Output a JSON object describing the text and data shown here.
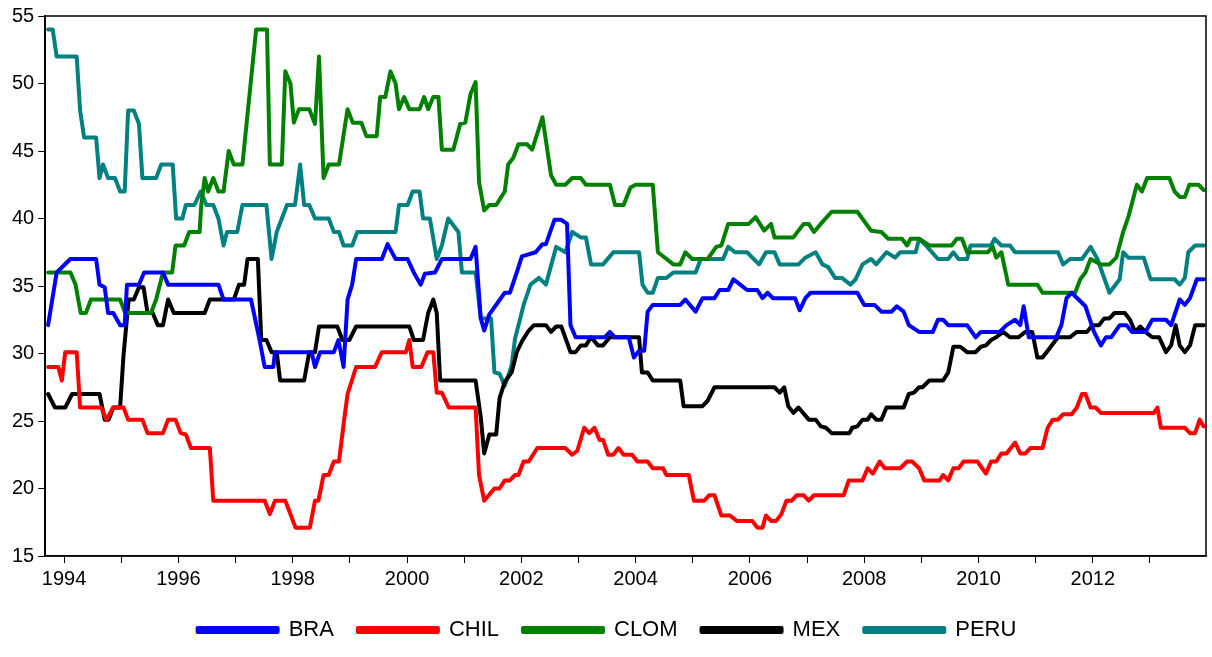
{
  "chart_data": {
    "type": "line",
    "marker": "none",
    "line_style": "solid",
    "legend": "bottom",
    "xlim": [
      1993.67,
      2013.98
    ],
    "ylim": [
      15,
      55
    ],
    "yticks": [
      15,
      20,
      25,
      30,
      35,
      40,
      45,
      50,
      55
    ],
    "xticks": [
      {
        "value": 1994,
        "label": "1994"
      },
      {
        "value": 1995,
        "label": null
      },
      {
        "value": 1996,
        "label": "1996"
      },
      {
        "value": 1997,
        "label": null
      },
      {
        "value": 1998,
        "label": "1998"
      },
      {
        "value": 1999,
        "label": null
      },
      {
        "value": 2000,
        "label": "2000"
      },
      {
        "value": 2001,
        "label": null
      },
      {
        "value": 2002,
        "label": "2002"
      },
      {
        "value": 2003,
        "label": null
      },
      {
        "value": 2004,
        "label": "2004"
      },
      {
        "value": 2005,
        "label": null
      },
      {
        "value": 2006,
        "label": "2006"
      },
      {
        "value": 2007,
        "label": null
      },
      {
        "value": 2008,
        "label": "2008"
      },
      {
        "value": 2009,
        "label": null
      },
      {
        "value": 2010,
        "label": "2010"
      },
      {
        "value": 2011,
        "label": null
      },
      {
        "value": 2012,
        "label": "2012"
      },
      {
        "value": 2013,
        "label": null
      }
    ],
    "series": [
      {
        "name": "BRA",
        "color": "#0000ff",
        "x": [
          1993.72,
          1993.87,
          1994.11,
          1994.56,
          1994.62,
          1994.71,
          1994.77,
          1994.86,
          1994.98,
          1995.06,
          1995.1,
          1995.31,
          1995.4,
          1995.73,
          1995.82,
          1996.7,
          1996.79,
          1997.27,
          1997.42,
          1997.51,
          1997.66,
          1997.69,
          1998.33,
          1998.39,
          1998.48,
          1998.72,
          1998.8,
          1998.89,
          1998.96,
          1999.04,
          1999.11,
          1999.56,
          1999.66,
          1999.8,
          2000.01,
          2000.13,
          2000.24,
          2000.31,
          2000.49,
          2000.61,
          2000.81,
          2001.11,
          2001.2,
          2001.29,
          2001.35,
          2001.44,
          2001.71,
          2001.8,
          2001.92,
          2002.01,
          2002.25,
          2002.37,
          2002.43,
          2002.58,
          2002.7,
          2002.8,
          2002.86,
          2002.95,
          2003.46,
          2003.55,
          2003.64,
          2003.88,
          2003.97,
          2004.06,
          2004.15,
          2004.21,
          2004.3,
          2004.78,
          2004.87,
          2005.05,
          2005.17,
          2005.38,
          2005.47,
          2005.62,
          2005.71,
          2005.83,
          2005.95,
          2006.13,
          2006.22,
          2006.31,
          2006.4,
          2006.79,
          2006.87,
          2006.97,
          2007.06,
          2007.74,
          2007.88,
          2008,
          2008.18,
          2008.3,
          2008.48,
          2008.57,
          2008.69,
          2008.78,
          2008.96,
          2009.2,
          2009.29,
          2009.38,
          2009.47,
          2009.8,
          2009.95,
          2010.04,
          2010.37,
          2010.49,
          2010.64,
          2010.73,
          2010.79,
          2010.88,
          2011.36,
          2011.45,
          2011.54,
          2011.63,
          2011.87,
          2012.02,
          2012.14,
          2012.23,
          2012.32,
          2012.47,
          2012.59,
          2012.68,
          2012.92,
          2013.04,
          2013.28,
          2013.37,
          2013.52,
          2013.61,
          2013.7,
          2013.82,
          2013.94
        ],
        "values": [
          32.1,
          36,
          37,
          37,
          35.1,
          34.9,
          33,
          33,
          32.1,
          32.1,
          35.1,
          35.1,
          36,
          36,
          35.1,
          35.1,
          34,
          34,
          31,
          29,
          29,
          30.1,
          30.1,
          29,
          30.1,
          30.1,
          31,
          29,
          34,
          35.1,
          37,
          37,
          38.1,
          37,
          37,
          35.9,
          35.1,
          35.9,
          36,
          37,
          37,
          37,
          37.9,
          32.6,
          31.7,
          32.9,
          34.5,
          34.5,
          36,
          37.2,
          37.5,
          38.1,
          38.1,
          39.9,
          39.9,
          39.6,
          32.1,
          31.2,
          31.2,
          31.6,
          31.2,
          31.2,
          29.7,
          30.2,
          30.2,
          33.1,
          33.6,
          33.6,
          34,
          33.1,
          34.1,
          34.1,
          34.7,
          34.7,
          35.5,
          35.1,
          34.7,
          34.7,
          34.1,
          34.5,
          34.1,
          34.1,
          33.2,
          34.1,
          34.5,
          34.5,
          34.5,
          33.6,
          33.6,
          33.1,
          33.1,
          33.5,
          33.1,
          32.1,
          31.6,
          31.6,
          32.5,
          32.5,
          32.1,
          32.1,
          31.2,
          31.6,
          31.6,
          32.1,
          32.5,
          32.1,
          33.5,
          31.2,
          31.2,
          32.1,
          34.1,
          34.5,
          33.5,
          31.6,
          30.6,
          31.2,
          31.2,
          32.1,
          32.1,
          31.6,
          31.6,
          32.5,
          32.5,
          32.1,
          34,
          33.6,
          34.1,
          35.5,
          35.5
        ]
      },
      {
        "name": "CHIL",
        "color": "#ff0000",
        "x": [
          1993.72,
          1993.9,
          1993.96,
          1994.02,
          1994.22,
          1994.28,
          1994.65,
          1994.74,
          1994.86,
          1995.04,
          1995.12,
          1995.37,
          1995.46,
          1995.73,
          1995.82,
          1995.95,
          1996.04,
          1996.13,
          1996.22,
          1996.55,
          1996.61,
          1997.51,
          1997.6,
          1997.69,
          1997.87,
          1998.05,
          1998.3,
          1998.39,
          1998.45,
          1998.54,
          1998.63,
          1998.72,
          1998.81,
          1998.9,
          1998.96,
          1999.11,
          1999.44,
          1999.56,
          1999.98,
          2000.04,
          2000.1,
          2000.25,
          2000.36,
          2000.46,
          2000.52,
          2000.61,
          2000.73,
          2001.2,
          2001.26,
          2001.35,
          2001.53,
          2001.62,
          2001.71,
          2001.8,
          2001.89,
          2001.95,
          2002.04,
          2002.13,
          2002.28,
          2002.77,
          2002.89,
          2002.98,
          2003.1,
          2003.19,
          2003.28,
          2003.37,
          2003.43,
          2003.52,
          2003.61,
          2003.7,
          2003.79,
          2003.94,
          2004.03,
          2004.21,
          2004.3,
          2004.48,
          2004.54,
          2004.93,
          2005.02,
          2005.2,
          2005.29,
          2005.38,
          2005.5,
          2005.65,
          2005.77,
          2006.04,
          2006.13,
          2006.22,
          2006.28,
          2006.37,
          2006.46,
          2006.55,
          2006.64,
          2006.73,
          2006.82,
          2006.94,
          2007.03,
          2007.12,
          2007.64,
          2007.73,
          2007.97,
          2008.06,
          2008.15,
          2008.27,
          2008.36,
          2008.63,
          2008.75,
          2008.84,
          2008.96,
          2009.05,
          2009.32,
          2009.38,
          2009.47,
          2009.56,
          2009.65,
          2009.74,
          2009.98,
          2010.13,
          2010.22,
          2010.31,
          2010.4,
          2010.49,
          2010.64,
          2010.73,
          2010.82,
          2010.91,
          2011.12,
          2011.21,
          2011.3,
          2011.39,
          2011.48,
          2011.63,
          2011.72,
          2011.81,
          2011.87,
          2011.96,
          2012.05,
          2012.14,
          2013.07,
          2013.13,
          2013.19,
          2013.61,
          2013.7,
          2013.79,
          2013.87,
          2013.94
        ],
        "values": [
          29,
          29,
          28,
          30.1,
          30.1,
          26,
          26,
          25.1,
          26,
          26,
          25.1,
          25.1,
          24.1,
          24.1,
          25.1,
          25.1,
          24.1,
          24,
          23,
          23,
          19.1,
          19.1,
          18.1,
          19.1,
          19.1,
          17.1,
          17.1,
          19.1,
          19.1,
          21,
          21,
          22,
          22,
          25.1,
          27,
          29,
          29,
          30.1,
          30.1,
          31,
          29,
          29,
          30.1,
          30.1,
          27.1,
          27.1,
          26,
          26,
          21,
          19.1,
          20,
          20,
          20.6,
          20.6,
          21,
          21,
          22,
          22,
          23,
          23,
          22.5,
          22.8,
          24.5,
          24.1,
          24.5,
          23.6,
          23.6,
          22.5,
          22.5,
          23,
          22.5,
          22.5,
          22,
          22,
          21.5,
          21.5,
          21,
          21,
          19.1,
          19.1,
          19.5,
          19.5,
          18,
          18,
          17.6,
          17.6,
          17.1,
          17.1,
          18,
          17.6,
          17.6,
          18.1,
          19.1,
          19.1,
          19.5,
          19.5,
          19.1,
          19.5,
          19.5,
          20.6,
          20.6,
          21.5,
          21.1,
          22,
          21.5,
          21.5,
          22,
          22,
          21.5,
          20.6,
          20.6,
          21,
          20.6,
          21.5,
          21.5,
          22,
          22,
          21.1,
          22,
          22,
          22.6,
          22.6,
          23.4,
          22.6,
          22.6,
          23,
          23,
          24.5,
          25.1,
          25.1,
          25.5,
          25.5,
          26,
          27,
          27,
          26,
          26,
          25.6,
          25.6,
          26,
          24.5,
          24.5,
          24.1,
          24.1,
          25.1,
          24.6
        ]
      },
      {
        "name": "CLOM",
        "color": "#008000",
        "x": [
          1993.72,
          1994.11,
          1994.2,
          1994.29,
          1994.38,
          1994.47,
          1994.98,
          1995.07,
          1995.52,
          1995.61,
          1995.73,
          1995.89,
          1995.95,
          1996.1,
          1996.19,
          1996.37,
          1996.4,
          1996.46,
          1996.52,
          1996.61,
          1996.7,
          1996.79,
          1996.88,
          1996.97,
          1997.12,
          1997.36,
          1997.55,
          1997.6,
          1997.81,
          1997.87,
          1997.96,
          1998.02,
          1998.11,
          1998.29,
          1998.39,
          1998.46,
          1998.54,
          1998.63,
          1998.81,
          1998.96,
          1999.05,
          1999.2,
          1999.29,
          1999.47,
          1999.53,
          1999.62,
          1999.71,
          1999.8,
          1999.86,
          1999.95,
          2000.04,
          2000.22,
          2000.3,
          2000.37,
          2000.46,
          2000.55,
          2000.61,
          2000.81,
          2000.93,
          2001.02,
          2001.11,
          2001.2,
          2001.26,
          2001.35,
          2001.44,
          2001.56,
          2001.71,
          2001.77,
          2001.86,
          2001.95,
          2002.1,
          2002.19,
          2002.37,
          2002.52,
          2002.61,
          2002.77,
          2002.89,
          2003.04,
          2003.13,
          2003.55,
          2003.64,
          2003.79,
          2003.91,
          2004,
          2004.3,
          2004.39,
          2004.48,
          2004.66,
          2004.78,
          2004.87,
          2004.99,
          2005.26,
          2005.41,
          2005.5,
          2005.62,
          2005.98,
          2006.1,
          2006.25,
          2006.37,
          2006.43,
          2006.76,
          2006.94,
          2007.03,
          2007.12,
          2007.24,
          2007.43,
          2007.74,
          2007.88,
          2008.12,
          2008.3,
          2008.42,
          2008.66,
          2008.75,
          2008.81,
          2008.96,
          2009.14,
          2009.53,
          2009.62,
          2009.71,
          2009.8,
          2010.16,
          2010.25,
          2010.31,
          2010.4,
          2010.52,
          2011.03,
          2011.12,
          2011.69,
          2011.78,
          2011.87,
          2011.96,
          2012.14,
          2012.29,
          2012.41,
          2012.53,
          2012.62,
          2012.77,
          2012.86,
          2012.95,
          2013.34,
          2013.43,
          2013.52,
          2013.61,
          2013.69,
          2013.85,
          2013.94
        ],
        "values": [
          36,
          36,
          35.1,
          33,
          33,
          34,
          34,
          33,
          33,
          34,
          36,
          36,
          38,
          38,
          39,
          39,
          41,
          43,
          42,
          43,
          42,
          42,
          45,
          44,
          44,
          54,
          54,
          44,
          44,
          50.9,
          50,
          47.1,
          48.1,
          48.1,
          47,
          52,
          43,
          44,
          44,
          48.1,
          47.1,
          47.1,
          46.1,
          46.1,
          49,
          49,
          50.9,
          50,
          48.1,
          49,
          48.1,
          48.1,
          49,
          48.1,
          49,
          49,
          45.1,
          45.1,
          47,
          47.1,
          49.2,
          50.1,
          42.7,
          40.6,
          41,
          41,
          42,
          44,
          44.5,
          45.5,
          45.5,
          45.1,
          47.5,
          43.2,
          42.5,
          42.5,
          43,
          43,
          42.5,
          42.5,
          41,
          41,
          42.3,
          42.5,
          42.5,
          37.5,
          37.2,
          36.6,
          36.6,
          37.5,
          37,
          37,
          37.9,
          38,
          39.6,
          39.6,
          40.1,
          39.1,
          39.6,
          38.6,
          38.6,
          39.6,
          39.6,
          39,
          39.6,
          40.5,
          40.5,
          40.5,
          39.1,
          39,
          38.5,
          38.5,
          38,
          38.5,
          38.5,
          38,
          38,
          38.5,
          38.5,
          37.5,
          37.5,
          37.9,
          37.1,
          37.5,
          35.1,
          35.1,
          34.5,
          34.5,
          35.5,
          36,
          37,
          36.6,
          36.6,
          37.1,
          39,
          40.1,
          42.5,
          42,
          43,
          43,
          42,
          41.6,
          41.6,
          42.5,
          42.5,
          42.1
        ]
      },
      {
        "name": "MEX",
        "color": "#000000",
        "x": [
          1993.72,
          1993.84,
          1994.02,
          1994.14,
          1994.62,
          1994.71,
          1994.78,
          1994.86,
          1994.98,
          1995.04,
          1995.13,
          1995.22,
          1995.31,
          1995.39,
          1995.46,
          1995.55,
          1995.64,
          1995.73,
          1995.82,
          1995.92,
          1996.46,
          1996.55,
          1996.97,
          1997.06,
          1997.15,
          1997.21,
          1997.39,
          1997.45,
          1997.54,
          1997.63,
          1997.72,
          1997.78,
          1998.2,
          1998.29,
          1998.39,
          1998.46,
          1998.78,
          1998.87,
          1998.99,
          1999.11,
          2000.04,
          2000.12,
          2000.28,
          2000.37,
          2000.46,
          2000.52,
          2000.58,
          2000.81,
          2001.2,
          2001.29,
          2001.35,
          2001.44,
          2001.56,
          2001.62,
          2001.71,
          2001.83,
          2001.92,
          2002.01,
          2002.13,
          2002.22,
          2002.43,
          2002.52,
          2002.61,
          2002.7,
          2002.86,
          2002.95,
          2003.04,
          2003.13,
          2003.22,
          2003.34,
          2003.43,
          2003.55,
          2004.06,
          2004.11,
          2004.21,
          2004.3,
          2004.78,
          2004.84,
          2005.17,
          2005.26,
          2005.38,
          2006.43,
          2006.52,
          2006.6,
          2006.67,
          2006.76,
          2006.85,
          2007.03,
          2007.15,
          2007.24,
          2007.33,
          2007.43,
          2007.74,
          2007.79,
          2007.88,
          2007.97,
          2008.06,
          2008.12,
          2008.21,
          2008.3,
          2008.39,
          2008.69,
          2008.78,
          2008.87,
          2008.96,
          2009.02,
          2009.14,
          2009.38,
          2009.47,
          2009.56,
          2009.68,
          2009.8,
          2009.95,
          2010.04,
          2010.13,
          2010.22,
          2010.31,
          2010.43,
          2010.55,
          2010.7,
          2010.82,
          2010.94,
          2011.03,
          2011.12,
          2011.39,
          2011.6,
          2011.72,
          2011.9,
          2011.99,
          2012.11,
          2012.2,
          2012.29,
          2012.38,
          2012.56,
          2012.65,
          2012.74,
          2012.83,
          2012.92,
          2013.04,
          2013.16,
          2013.28,
          2013.37,
          2013.45,
          2013.52,
          2013.61,
          2013.7,
          2013.79,
          2013.94
        ],
        "values": [
          27,
          26,
          26,
          27,
          27,
          25.1,
          25.1,
          26,
          26,
          29.9,
          34,
          34,
          34.9,
          34.9,
          33,
          33,
          32.1,
          32.1,
          34,
          33,
          33,
          34,
          34,
          35.1,
          35.1,
          37,
          37,
          31,
          31,
          30.1,
          30.1,
          28,
          28,
          30.1,
          30.1,
          32,
          32,
          31,
          31,
          32,
          32,
          31,
          31,
          33,
          34,
          33,
          28,
          28,
          28,
          25.3,
          22.6,
          24,
          24,
          26.7,
          27.9,
          28.6,
          30.1,
          30.9,
          31.7,
          32.1,
          32.1,
          31.6,
          32,
          32,
          30.1,
          30.1,
          30.6,
          30.6,
          31.2,
          30.6,
          30.6,
          31.2,
          31.2,
          28.6,
          28.6,
          28,
          28,
          26.1,
          26.1,
          26.5,
          27.5,
          27.5,
          27.1,
          27.5,
          26.1,
          25.6,
          26,
          25.1,
          25.1,
          24.6,
          24.5,
          24.1,
          24.1,
          24.5,
          24.6,
          25.1,
          25.1,
          25.5,
          25.1,
          25.1,
          26,
          26,
          27,
          27.1,
          27.5,
          27.5,
          28,
          28,
          28.6,
          30.5,
          30.5,
          30.1,
          30.1,
          30.5,
          30.6,
          31,
          31.2,
          31.6,
          31.2,
          31.2,
          31.6,
          31.6,
          29.7,
          29.7,
          31.2,
          31.2,
          31.6,
          31.6,
          32.1,
          32.1,
          32.6,
          32.6,
          33,
          33,
          32.5,
          31.6,
          32,
          31.6,
          31.2,
          31.2,
          30.1,
          30.6,
          32.1,
          30.6,
          30.1,
          30.6,
          32.1,
          32.1
        ]
      },
      {
        "name": "PERU",
        "color": "#008080",
        "x": [
          1993.72,
          1993.8,
          1993.87,
          1994.22,
          1994.28,
          1994.35,
          1994.56,
          1994.62,
          1994.68,
          1994.77,
          1994.89,
          1994.98,
          1995.06,
          1995.12,
          1995.22,
          1995.31,
          1995.37,
          1995.61,
          1995.7,
          1995.9,
          1995.96,
          1996.07,
          1996.13,
          1996.28,
          1996.39,
          1996.49,
          1996.61,
          1996.7,
          1996.79,
          1996.85,
          1997.03,
          1997.12,
          1997.54,
          1997.63,
          1997.72,
          1997.9,
          1998.04,
          1998.13,
          1998.2,
          1998.29,
          1998.39,
          1998.63,
          1998.72,
          1998.81,
          1998.89,
          1999.04,
          1999.13,
          1999.8,
          1999.86,
          2000.01,
          2000.1,
          2000.22,
          2000.28,
          2000.4,
          2000.52,
          2000.61,
          2000.72,
          2000.9,
          2000.96,
          2001.2,
          2001.29,
          2001.47,
          2001.53,
          2001.62,
          2001.71,
          2001.83,
          2001.89,
          2002.04,
          2002.16,
          2002.31,
          2002.43,
          2002.61,
          2002.77,
          2002.89,
          2003.04,
          2003.13,
          2003.22,
          2003.43,
          2003.61,
          2004.06,
          2004.12,
          2004.21,
          2004.3,
          2004.39,
          2004.54,
          2004.66,
          2005.05,
          2005.14,
          2005.53,
          2005.62,
          2005.74,
          2005.95,
          2006.16,
          2006.28,
          2006.43,
          2006.52,
          2006.85,
          2006.97,
          2007.15,
          2007.27,
          2007.37,
          2007.49,
          2007.61,
          2007.76,
          2007.85,
          2007.97,
          2008.12,
          2008.21,
          2008.39,
          2008.54,
          2008.63,
          2008.9,
          2008.96,
          2009.08,
          2009.29,
          2009.47,
          2009.56,
          2009.65,
          2009.8,
          2009.86,
          2010.22,
          2010.28,
          2010.4,
          2010.55,
          2010.64,
          2011.39,
          2011.48,
          2011.6,
          2011.81,
          2011.96,
          2012.08,
          2012.29,
          2012.47,
          2012.53,
          2012.62,
          2012.89,
          2013.01,
          2013.43,
          2013.52,
          2013.61,
          2013.67,
          2013.79,
          2013.94
        ],
        "values": [
          54,
          54,
          52,
          52,
          48,
          46,
          46,
          43,
          44,
          43,
          43,
          42,
          42,
          48,
          48,
          47,
          43,
          43,
          44,
          44,
          40,
          40,
          41,
          41,
          42,
          41,
          41,
          40,
          38,
          39,
          39,
          41,
          41,
          37,
          39,
          41,
          41,
          44,
          41,
          41,
          40,
          40,
          39,
          39,
          38,
          38,
          39,
          39,
          41,
          41,
          42,
          42,
          40,
          40,
          37,
          38,
          40,
          39,
          36,
          36,
          32.6,
          32.6,
          28.6,
          28.5,
          27.6,
          29.1,
          31.1,
          33.6,
          35.1,
          35.6,
          35.1,
          37.9,
          37.5,
          39,
          38.6,
          38.6,
          36.6,
          36.6,
          37.5,
          37.5,
          35.1,
          34.5,
          34.5,
          35.6,
          35.6,
          36,
          36,
          37,
          37,
          37.9,
          37.5,
          37.5,
          36.6,
          37.5,
          37.5,
          36.6,
          36.6,
          37.1,
          37.5,
          36.6,
          36.4,
          35.6,
          35.6,
          35.1,
          35.5,
          36.6,
          37,
          36.6,
          37.5,
          37.1,
          37.5,
          37.5,
          38.5,
          38,
          37,
          37,
          37.5,
          37,
          37,
          38,
          38,
          38.5,
          38,
          38,
          37.5,
          37.5,
          36.6,
          37,
          37,
          37.9,
          37,
          34.5,
          35.5,
          37.5,
          37.1,
          37.1,
          35.5,
          35.5,
          35.1,
          35.6,
          37.5,
          38,
          38
        ]
      }
    ]
  }
}
